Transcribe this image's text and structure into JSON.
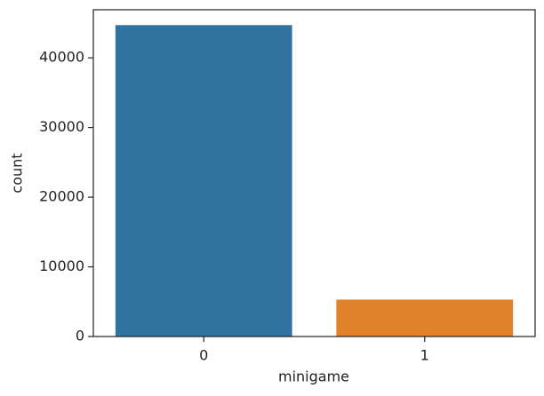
{
  "chart_data": {
    "type": "bar",
    "x_label": "minigame",
    "y_label": "count",
    "categories": [
      "0",
      "1"
    ],
    "values": [
      44700,
      5300
    ],
    "colors": [
      "#3274a1",
      "#e1812c"
    ],
    "ylim": [
      0,
      46900
    ],
    "yticks": [
      0,
      10000,
      20000,
      30000,
      40000
    ],
    "grid": false
  }
}
